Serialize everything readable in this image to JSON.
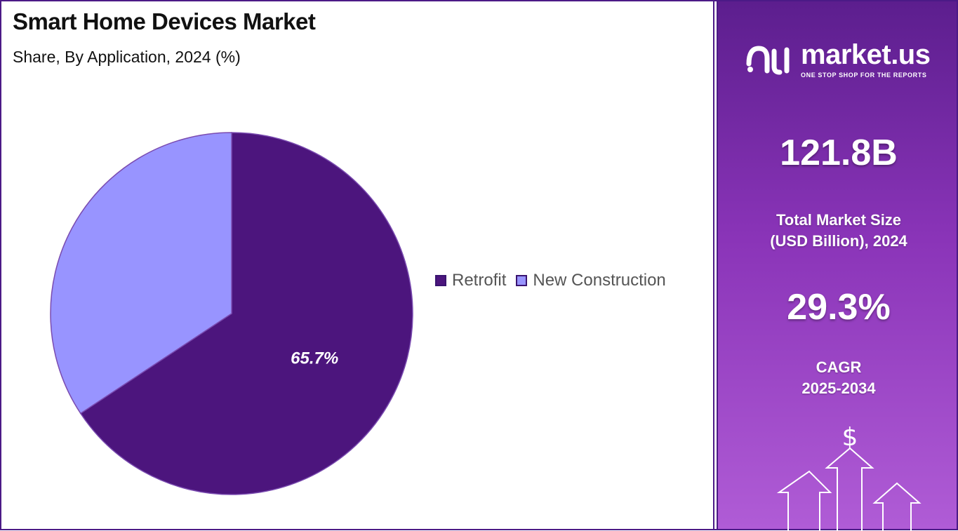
{
  "title": "Smart Home Devices Market",
  "subtitle": "Share, By Application, 2024 (%)",
  "chart_data": {
    "type": "pie",
    "title": "Smart Home Devices Market",
    "subtitle": "Share, By Application, 2024 (%)",
    "categories": [
      "Retrofit",
      "New Construction"
    ],
    "values": [
      65.7,
      34.3
    ],
    "labels": [
      "65.7%",
      ""
    ],
    "colors": [
      "#4c157d",
      "#9894ff"
    ],
    "legend_position": "right"
  },
  "brand": {
    "name": "market.us",
    "tagline": "ONE STOP SHOP FOR THE REPORTS"
  },
  "stats": {
    "market_size_value": "121.8B",
    "market_size_label_1": "Total Market Size",
    "market_size_label_2": "(USD Billion), 2024",
    "cagr_value": "29.3%",
    "cagr_label_1": "CAGR",
    "cagr_label_2": "2025-2034"
  },
  "icons": {
    "currency": "$"
  }
}
